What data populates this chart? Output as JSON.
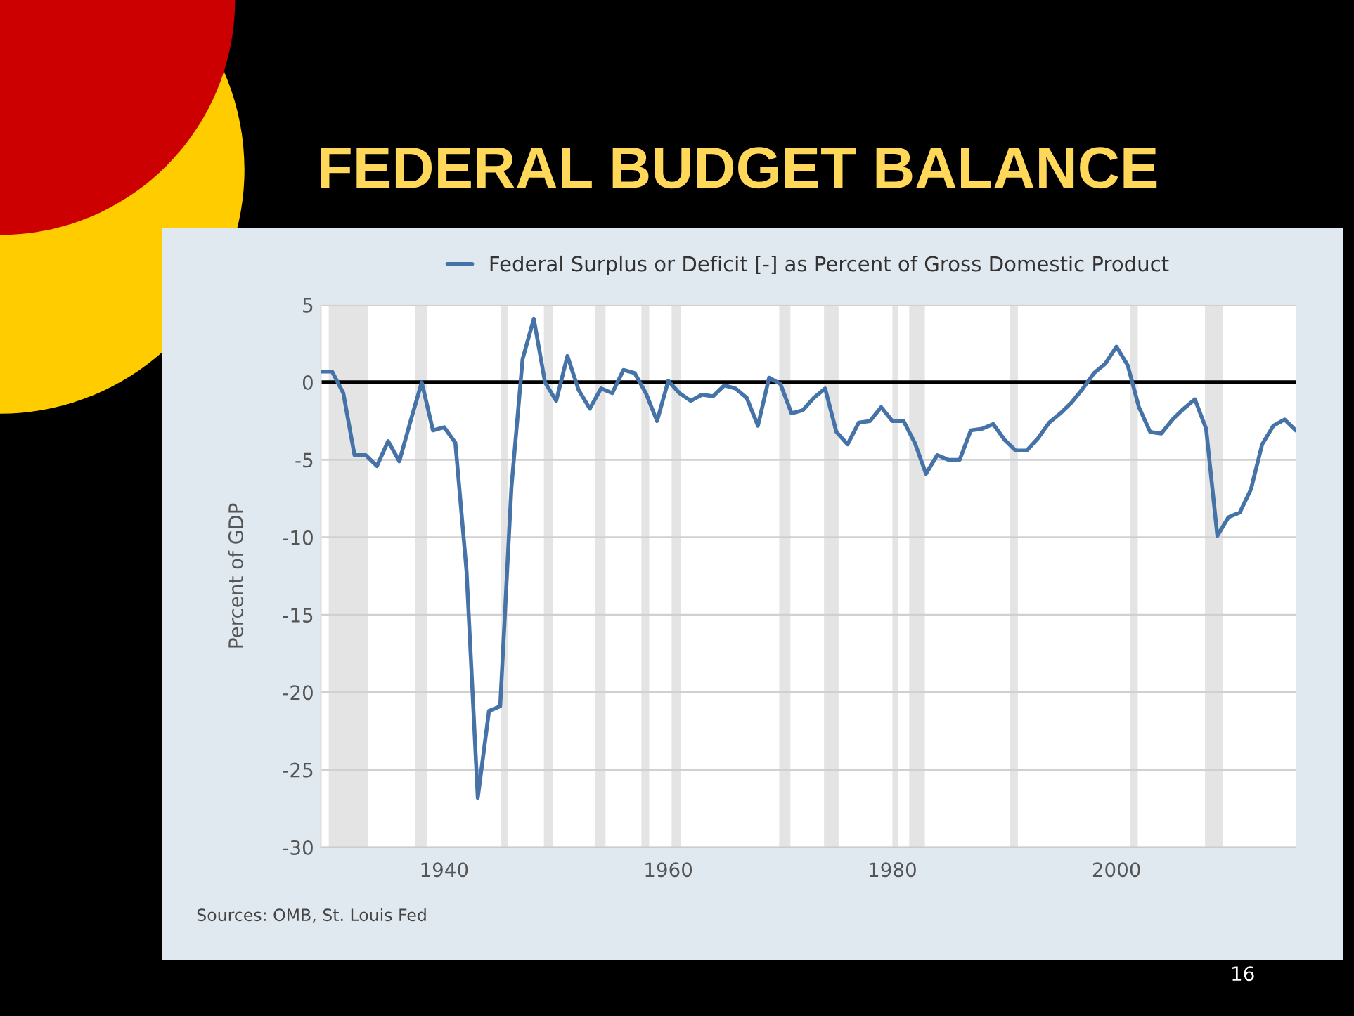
{
  "chart_data": {
    "type": "line",
    "title": "FEDERAL BUDGET BALANCE",
    "ylabel": "Percent of GDP",
    "x": [
      1929,
      1930,
      1931,
      1932,
      1933,
      1934,
      1935,
      1936,
      1937,
      1938,
      1939,
      1940,
      1941,
      1942,
      1943,
      1944,
      1945,
      1946,
      1947,
      1948,
      1949,
      1950,
      1951,
      1952,
      1953,
      1954,
      1955,
      1956,
      1957,
      1958,
      1959,
      1960,
      1961,
      1962,
      1963,
      1964,
      1965,
      1966,
      1967,
      1968,
      1969,
      1970,
      1971,
      1972,
      1973,
      1974,
      1975,
      1976,
      1977,
      1978,
      1979,
      1980,
      1981,
      1982,
      1983,
      1984,
      1985,
      1986,
      1987,
      1988,
      1989,
      1990,
      1991,
      1992,
      1993,
      1994,
      1995,
      1996,
      1997,
      1998,
      1999,
      2000,
      2001,
      2002,
      2003,
      2004,
      2005,
      2006,
      2007,
      2008,
      2009,
      2010,
      2011,
      2012,
      2013,
      2014,
      2015,
      2016
    ],
    "series": [
      {
        "name": "Federal Surplus or Deficit [-] as Percent of Gross Domestic Product",
        "color": "#4572a7",
        "values": [
          0.7,
          0.7,
          -0.7,
          -4.7,
          -4.7,
          -5.4,
          -3.8,
          -5.1,
          -2.5,
          0,
          -3.1,
          -2.9,
          -3.9,
          -12.2,
          -26.8,
          -21.2,
          -20.9,
          -6.8,
          1.5,
          4.1,
          0,
          -1.2,
          1.7,
          -0.5,
          -1.7,
          -0.4,
          -0.7,
          0.8,
          0.6,
          -0.7,
          -2.5,
          0.1,
          -0.7,
          -1.2,
          -0.8,
          -0.9,
          -0.2,
          -0.4,
          -1.0,
          -2.8,
          0.3,
          -0.1,
          -2.0,
          -1.8,
          -1.0,
          -0.4,
          -3.2,
          -4.0,
          -2.6,
          -2.5,
          -1.6,
          -2.5,
          -2.5,
          -3.9,
          -5.9,
          -4.7,
          -5.0,
          -5.0,
          -3.1,
          -3.0,
          -2.7,
          -3.7,
          -4.4,
          -4.4,
          -3.6,
          -2.6,
          -2.0,
          -1.3,
          -0.4,
          0.6,
          1.2,
          2.3,
          1.1,
          -1.6,
          -3.2,
          -3.3,
          -2.4,
          -1.7,
          -1.1,
          -3.0,
          -9.9,
          -8.7,
          -8.4,
          -6.9,
          -4.0,
          -2.8,
          -2.4,
          -3.1
        ]
      }
    ],
    "xlim": [
      1929,
      2016
    ],
    "xticks": [
      1940,
      1960,
      1980,
      2000
    ],
    "ylim": [
      -30,
      5
    ],
    "yticks": [
      -30,
      -25,
      -20,
      -15,
      -10,
      -5,
      0,
      5
    ],
    "grid": "y",
    "legend": "top",
    "line_style": "solid",
    "ref_lines": [
      {
        "axis": "y",
        "value": 0,
        "color": "#000000"
      }
    ],
    "bands": [
      {
        "axis": "x",
        "from": 1929.7,
        "to": 1933.2,
        "color": "#e4e4e4"
      },
      {
        "axis": "x",
        "from": 1937.4,
        "to": 1938.5,
        "color": "#e4e4e4"
      },
      {
        "axis": "x",
        "from": 1945.1,
        "to": 1945.7,
        "color": "#e4e4e4"
      },
      {
        "axis": "x",
        "from": 1948.9,
        "to": 1949.7,
        "color": "#e4e4e4"
      },
      {
        "axis": "x",
        "from": 1953.5,
        "to": 1954.4,
        "color": "#e4e4e4"
      },
      {
        "axis": "x",
        "from": 1957.6,
        "to": 1958.3,
        "color": "#e4e4e4"
      },
      {
        "axis": "x",
        "from": 1960.3,
        "to": 1961.1,
        "color": "#e4e4e4"
      },
      {
        "axis": "x",
        "from": 1969.9,
        "to": 1970.9,
        "color": "#e4e4e4"
      },
      {
        "axis": "x",
        "from": 1973.9,
        "to": 1975.2,
        "color": "#e4e4e4"
      },
      {
        "axis": "x",
        "from": 1980.0,
        "to": 1980.5,
        "color": "#e4e4e4"
      },
      {
        "axis": "x",
        "from": 1981.5,
        "to": 1982.9,
        "color": "#e4e4e4"
      },
      {
        "axis": "x",
        "from": 1990.5,
        "to": 1991.2,
        "color": "#e4e4e4"
      },
      {
        "axis": "x",
        "from": 2001.2,
        "to": 2001.9,
        "color": "#e4e4e4"
      },
      {
        "axis": "x",
        "from": 2007.9,
        "to": 2009.5,
        "color": "#e4e4e4"
      }
    ],
    "annotations": [
      "Sources: OMB, St. Louis Fed",
      "16"
    ]
  }
}
